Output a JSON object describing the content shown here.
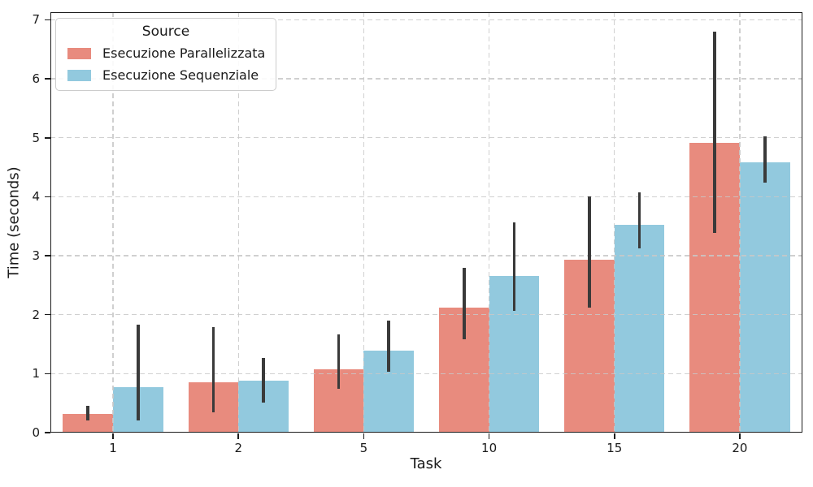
{
  "chart_data": {
    "type": "bar",
    "title": "",
    "xlabel": "Task",
    "ylabel": "Time (seconds)",
    "categories": [
      "1",
      "2",
      "5",
      "10",
      "15",
      "20"
    ],
    "yticks": [
      "0",
      "1",
      "2",
      "3",
      "4",
      "5",
      "6",
      "7"
    ],
    "ylim": [
      0,
      7.13
    ],
    "grid": {
      "visible": true,
      "style": "dashed",
      "axes": "both"
    },
    "legend": {
      "title": "Source",
      "position": "upper-left"
    },
    "error_bar_color": "#3a3a3a",
    "bar_group_width_fraction": 0.8,
    "series": [
      {
        "name": "Esecuzione Parallelizzata",
        "color": "#e88b7e",
        "values": [
          0.32,
          0.85,
          1.08,
          2.12,
          2.93,
          4.92
        ],
        "error_low": [
          0.2,
          0.35,
          0.75,
          1.58,
          2.12,
          3.39
        ],
        "error_high": [
          0.45,
          1.79,
          1.66,
          2.79,
          4.0,
          6.8
        ]
      },
      {
        "name": "Esecuzione Sequenziale",
        "color": "#92c9de",
        "values": [
          0.77,
          0.88,
          1.39,
          2.66,
          3.52,
          4.59
        ],
        "error_low": [
          0.21,
          0.51,
          1.03,
          2.06,
          3.13,
          4.24
        ],
        "error_high": [
          1.83,
          1.26,
          1.9,
          3.57,
          4.07,
          5.03
        ]
      }
    ]
  }
}
